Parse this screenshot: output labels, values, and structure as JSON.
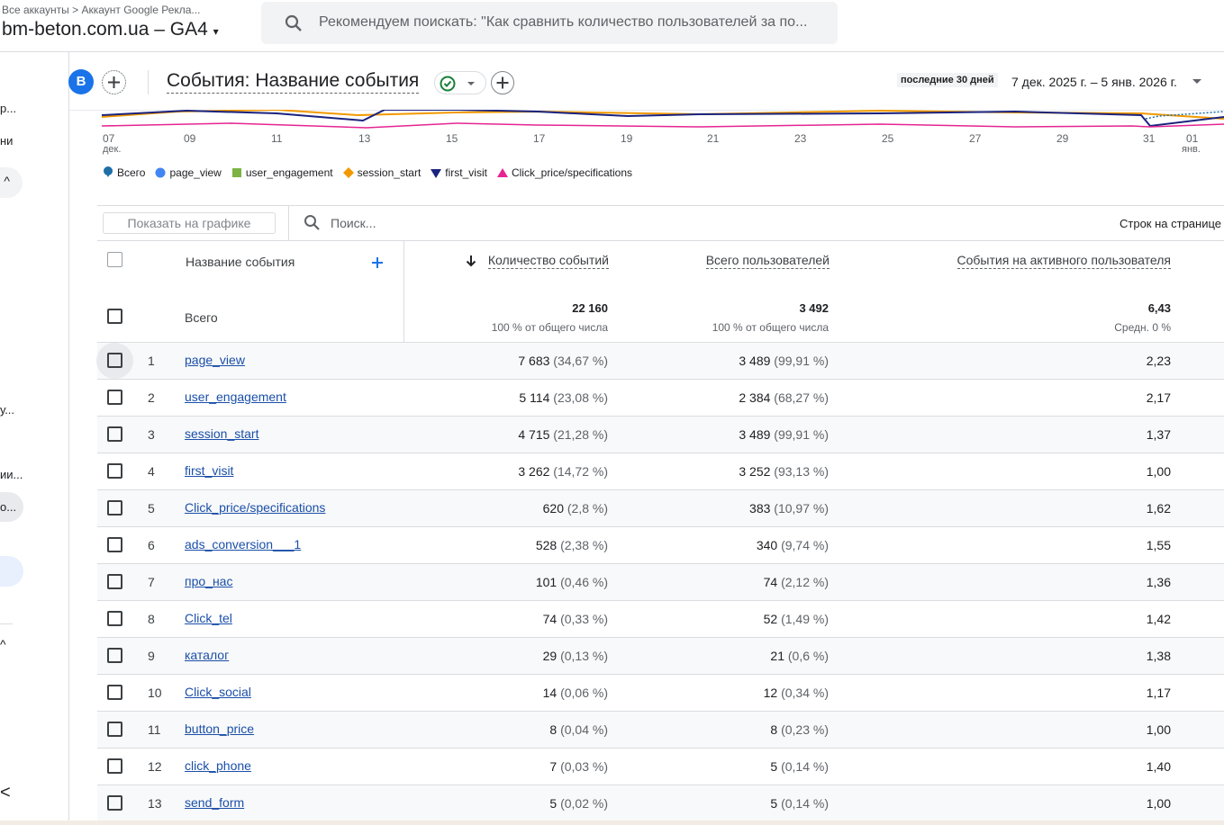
{
  "header": {
    "breadcrumb": [
      "Все аккаунты",
      "Аккаунт Google Рекла..."
    ],
    "property": "bm-beton.com.ua – GA4",
    "search_placeholder": "Рекомендуем поискать: \"Как сравнить количество пользователей за по..."
  },
  "sidebar": {
    "items": [
      "р...",
      "ни",
      "у...",
      "ии...",
      "о..."
    ]
  },
  "toolbar": {
    "avatar": "B",
    "title": "События: Название события",
    "date_preset": "последние 30 дней",
    "date_range": "7 дек. 2025 г. – 5 янв. 2026 г."
  },
  "chart": {
    "x_labels": [
      "07",
      "09",
      "11",
      "13",
      "15",
      "17",
      "19",
      "21",
      "23",
      "25",
      "27",
      "29",
      "31",
      "01"
    ],
    "month_labels": [
      "дек.",
      "янв."
    ],
    "legend": [
      {
        "name": "Всего",
        "color": "#1e6fa8"
      },
      {
        "name": "page_view",
        "color": "#4285f4"
      },
      {
        "name": "user_engagement",
        "color": "#7cb342"
      },
      {
        "name": "session_start",
        "color": "#f29900"
      },
      {
        "name": "first_visit",
        "color": "#1a237e"
      },
      {
        "name": "Click_price/specifications",
        "color": "#e52592"
      }
    ]
  },
  "table": {
    "show_on_chart": "Показать на графике",
    "search_placeholder": "Поиск...",
    "rows_per_page": "Строк на странице",
    "columns": [
      "Название события",
      "Количество событий",
      "Всего пользователей",
      "События на активного пользователя"
    ],
    "totals": {
      "label": "Всего",
      "events": "22 160",
      "events_note": "100 % от общего числа",
      "users": "3 492",
      "users_note": "100 % от общего числа",
      "per_user": "6,43",
      "per_user_note": "Средн. 0 %"
    },
    "rows": [
      [
        "1",
        "page_view",
        "7 683",
        "(34,67 %)",
        "3 489",
        "(99,91 %)",
        "2,23"
      ],
      [
        "2",
        "user_engagement",
        "5 114",
        "(23,08 %)",
        "2 384",
        "(68,27 %)",
        "2,17"
      ],
      [
        "3",
        "session_start",
        "4 715",
        "(21,28 %)",
        "3 489",
        "(99,91 %)",
        "1,37"
      ],
      [
        "4",
        "first_visit",
        "3 262",
        "(14,72 %)",
        "3 252",
        "(93,13 %)",
        "1,00"
      ],
      [
        "5",
        "Click_price/specifications",
        "620",
        "(2,8 %)",
        "383",
        "(10,97 %)",
        "1,62"
      ],
      [
        "6",
        "ads_conversion___1",
        "528",
        "(2,38 %)",
        "340",
        "(9,74 %)",
        "1,55"
      ],
      [
        "7",
        "про_нас",
        "101",
        "(0,46 %)",
        "74",
        "(2,12 %)",
        "1,36"
      ],
      [
        "8",
        "Click_tel",
        "74",
        "(0,33 %)",
        "52",
        "(1,49 %)",
        "1,42"
      ],
      [
        "9",
        "каталог",
        "29",
        "(0,13 %)",
        "21",
        "(0,6 %)",
        "1,38"
      ],
      [
        "10",
        "Click_social",
        "14",
        "(0,06 %)",
        "12",
        "(0,34 %)",
        "1,17"
      ],
      [
        "11",
        "button_price",
        "8",
        "(0,04 %)",
        "8",
        "(0,23 %)",
        "1,00"
      ],
      [
        "12",
        "click_phone",
        "7",
        "(0,03 %)",
        "5",
        "(0,14 %)",
        "1,40"
      ],
      [
        "13",
        "send_form",
        "5",
        "(0,02 %)",
        "5",
        "(0,14 %)",
        "1,00"
      ]
    ]
  }
}
